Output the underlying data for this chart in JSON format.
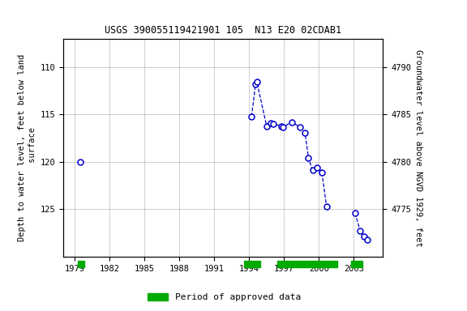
{
  "title": "USGS 390055119421901 105  N13 E20 02CDAB1",
  "legend_label": "Period of approved data",
  "ylabel_left": "Depth to water level, feet below land\n surface",
  "ylabel_right": "Groundwater level above NGVD 1929, feet",
  "ylim_left": [
    107,
    130
  ],
  "xlim": [
    1978.0,
    2005.5
  ],
  "xticks": [
    1979,
    1982,
    1985,
    1988,
    1991,
    1994,
    1997,
    2000,
    2003
  ],
  "yticks_left": [
    110,
    115,
    120,
    125
  ],
  "yticks_right": [
    4790,
    4785,
    4780,
    4775
  ],
  "bg_color": "#ffffff",
  "grid_color": "#bbbbbb",
  "line_color": "#0000cc",
  "bar_color": "#00aa00",
  "data_x": [
    1979.5,
    1994.2,
    1994.55,
    1994.65,
    1995.5,
    1995.85,
    1996.05,
    1996.75,
    1996.9,
    1997.65,
    1998.35,
    1998.8,
    1999.1,
    1999.45,
    1999.85,
    2000.25,
    2000.65,
    2003.1,
    2003.55,
    2003.85,
    2004.15
  ],
  "data_y": [
    120.0,
    115.2,
    111.8,
    111.5,
    116.2,
    115.9,
    116.0,
    116.2,
    116.3,
    115.8,
    116.3,
    116.9,
    119.6,
    120.9,
    120.6,
    121.1,
    124.7,
    125.4,
    127.3,
    127.9,
    128.2
  ],
  "segments": [
    [
      0
    ],
    [
      1,
      2,
      3,
      4,
      5,
      6,
      7,
      8,
      9,
      10,
      11,
      12,
      13,
      14,
      15,
      16
    ],
    [
      17,
      18,
      19,
      20
    ]
  ],
  "approved_bars": [
    [
      1979.25,
      1979.85
    ],
    [
      1993.55,
      1994.95
    ],
    [
      1996.45,
      2001.55
    ],
    [
      2002.75,
      2003.75
    ]
  ]
}
